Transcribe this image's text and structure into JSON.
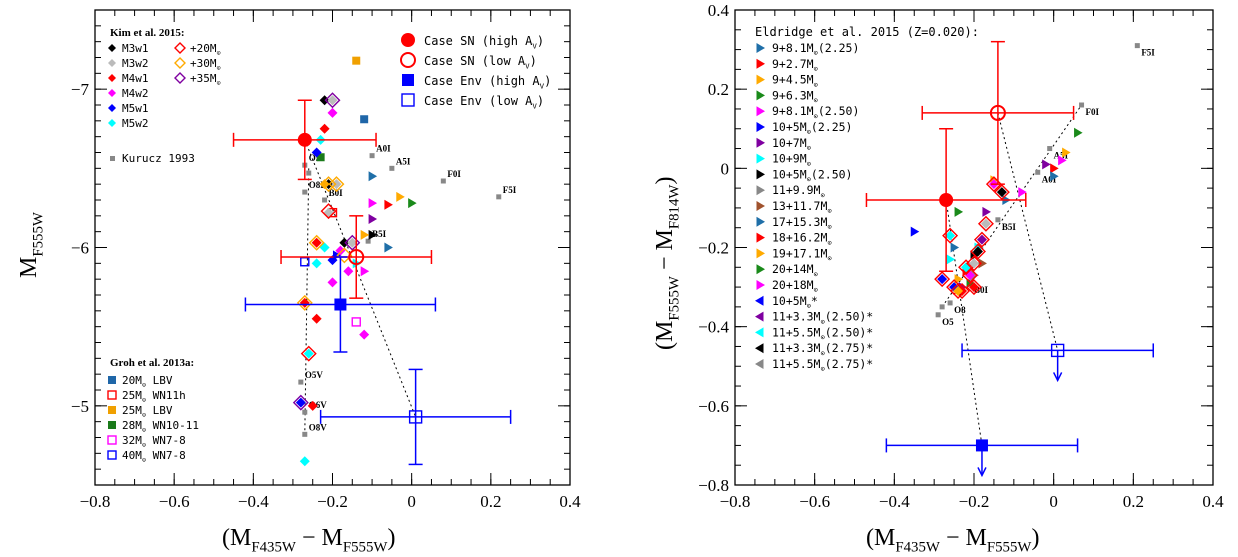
{
  "chart_data": [
    {
      "type": "scatter",
      "xlabel": "(M",
      "xlabel_sub1": "F435W",
      "xlabel_mid": " − M",
      "xlabel_sub2": "F555W",
      "xlabel_end": ")",
      "ylabel": "M",
      "ylabel_sub": "F555W",
      "xlim": [
        -0.8,
        0.4
      ],
      "ylim": [
        -4.5,
        -7.5
      ],
      "xticks": [
        "−0.8",
        "−0.6",
        "−0.4",
        "−0.2",
        "0",
        "0.2",
        "0.4"
      ],
      "xtick_values": [
        -0.8,
        -0.6,
        -0.4,
        -0.2,
        0,
        0.2,
        0.4
      ],
      "yticks": [
        "−7",
        "−6",
        "−5"
      ],
      "ytick_values": [
        -7,
        -6,
        -5
      ],
      "legend_kim_title": "Kim et al. 2015:",
      "legend_kim": [
        {
          "label": "M3w1",
          "color": "#000000",
          "marker": "diamond"
        },
        {
          "label": "M3w2",
          "color": "#bbbbbb",
          "marker": "diamond"
        },
        {
          "label": "M4w1",
          "color": "#ff0000",
          "marker": "diamond"
        },
        {
          "label": "M4w2",
          "color": "#ff00ff",
          "marker": "diamond"
        },
        {
          "label": "M5w1",
          "color": "#0000ff",
          "marker": "diamond"
        },
        {
          "label": "M5w2",
          "color": "#00ffff",
          "marker": "diamond"
        },
        {
          "label": "+20M",
          "color": "#ff0000",
          "marker": "open-diamond"
        },
        {
          "label": "+30M",
          "color": "#ffaa00",
          "marker": "open-diamond"
        },
        {
          "label": "+35M",
          "color": "#7f00a0",
          "marker": "open-diamond"
        }
      ],
      "solar_symbol": "⊙",
      "legend_kurucz": "Kurucz 1993",
      "legend_case": [
        {
          "label": "Case SN (high A",
          "sub": "V",
          "end": ")",
          "color": "#ff0000",
          "marker": "filled-circle"
        },
        {
          "label": "Case SN (low A",
          "sub": "V",
          "end": ")",
          "color": "#ff0000",
          "marker": "open-circle"
        },
        {
          "label": "Case Env (high A",
          "sub": "V",
          "end": ")",
          "color": "#0000ff",
          "marker": "filled-square"
        },
        {
          "label": "Case Env (low A",
          "sub": "V",
          "end": ")",
          "color": "#0000ff",
          "marker": "open-square"
        }
      ],
      "legend_groh_title": "Groh et al. 2013a:",
      "legend_groh": [
        {
          "label": "20M",
          "suffix": " LBV",
          "color": "#1f66a8",
          "marker": "filled-square"
        },
        {
          "label": "25M",
          "suffix": " WN11h",
          "color": "#ff0000",
          "marker": "open-square"
        },
        {
          "label": "25M",
          "suffix": " LBV",
          "color": "#f0a000",
          "marker": "filled-square"
        },
        {
          "label": "28M",
          "suffix": " WN10-11",
          "color": "#1a7a1a",
          "marker": "filled-square"
        },
        {
          "label": "32M",
          "suffix": " WN7-8",
          "color": "#ff00ff",
          "marker": "open-square"
        },
        {
          "label": "40M",
          "suffix": " WN7-8",
          "color": "#0000ff",
          "marker": "open-square"
        }
      ],
      "kurucz_points": [
        {
          "x": -0.27,
          "y": -6.52,
          "label": "O5I"
        },
        {
          "x": -0.26,
          "y": -6.47,
          "label": ""
        },
        {
          "x": -0.27,
          "y": -6.35,
          "label": "O8I"
        },
        {
          "x": -0.22,
          "y": -6.3,
          "label": "B0I"
        },
        {
          "x": -0.11,
          "y": -6.04,
          "label": "B5I"
        },
        {
          "x": -0.1,
          "y": -6.58,
          "label": "A0I"
        },
        {
          "x": -0.05,
          "y": -6.5,
          "label": "A5I"
        },
        {
          "x": 0.08,
          "y": -6.42,
          "label": "F0I"
        },
        {
          "x": 0.22,
          "y": -6.32,
          "label": "F5I"
        },
        {
          "x": -0.28,
          "y": -5.15,
          "label": "O5V"
        },
        {
          "x": -0.27,
          "y": -4.96,
          "label": "O6V"
        },
        {
          "x": -0.27,
          "y": -4.82,
          "label": "O8V"
        }
      ],
      "case_points": [
        {
          "name": "Case SN (high Av)",
          "x": -0.27,
          "y": -6.68,
          "xerr": 0.18,
          "yerr": 0.25,
          "color": "#ff0000",
          "marker": "filled-circle"
        },
        {
          "name": "Case SN (low Av)",
          "x": -0.14,
          "y": -5.94,
          "xerr": 0.19,
          "yerr": 0.26,
          "color": "#ff0000",
          "marker": "open-circle"
        },
        {
          "name": "Case Env (high Av)",
          "x": -0.18,
          "y": -5.64,
          "xerr": 0.24,
          "yerr": 0.3,
          "color": "#0000ff",
          "marker": "filled-square"
        },
        {
          "name": "Case Env (low Av)",
          "x": 0.01,
          "y": -4.93,
          "xerr": 0.24,
          "yerr": 0.3,
          "color": "#0000ff",
          "marker": "open-square"
        }
      ],
      "groh_points": [
        {
          "x": -0.12,
          "y": -6.81,
          "color": "#1f66a8",
          "marker": "filled-square"
        },
        {
          "x": -0.14,
          "y": -7.18,
          "color": "#f0a000",
          "marker": "filled-square"
        },
        {
          "x": -0.23,
          "y": -6.57,
          "color": "#1a7a1a",
          "marker": "filled-square"
        },
        {
          "x": -0.2,
          "y": -6.22,
          "color": "#ff0000",
          "marker": "open-square"
        },
        {
          "x": -0.14,
          "y": -5.53,
          "color": "#ff00ff",
          "marker": "open-square"
        },
        {
          "x": -0.27,
          "y": -5.91,
          "color": "#0000ff",
          "marker": "open-square"
        }
      ],
      "kim_points": [
        {
          "x": -0.22,
          "y": -6.93,
          "color": "#000000"
        },
        {
          "x": -0.2,
          "y": -6.93,
          "color": "#bbbbbb"
        },
        {
          "x": -0.2,
          "y": -6.85,
          "color": "#ff00ff"
        },
        {
          "x": -0.22,
          "y": -6.75,
          "color": "#ff0000"
        },
        {
          "x": -0.23,
          "y": -6.68,
          "color": "#00ffff"
        },
        {
          "x": -0.24,
          "y": -6.6,
          "color": "#0000ff"
        },
        {
          "x": -0.21,
          "y": -6.4,
          "color": "#000000"
        },
        {
          "x": -0.19,
          "y": -6.4,
          "color": "#bbbbbb"
        },
        {
          "x": -0.21,
          "y": -6.22,
          "color": "#bbbbbb"
        },
        {
          "x": -0.24,
          "y": -6.03,
          "color": "#ff0000"
        },
        {
          "x": -0.22,
          "y": -6.0,
          "color": "#00ffff"
        },
        {
          "x": -0.17,
          "y": -6.03,
          "color": "#000000"
        },
        {
          "x": -0.15,
          "y": -6.03,
          "color": "#bbbbbb"
        },
        {
          "x": -0.18,
          "y": -5.98,
          "color": "#ff00ff"
        },
        {
          "x": -0.24,
          "y": -5.9,
          "color": "#00ffff"
        },
        {
          "x": -0.2,
          "y": -5.92,
          "color": "#0000ff"
        },
        {
          "x": -0.16,
          "y": -5.85,
          "color": "#ff00ff"
        },
        {
          "x": -0.27,
          "y": -5.65,
          "color": "#ff0000"
        },
        {
          "x": -0.24,
          "y": -5.55,
          "color": "#ff0000"
        },
        {
          "x": -0.26,
          "y": -5.33,
          "color": "#00ffff"
        },
        {
          "x": -0.12,
          "y": -5.45,
          "color": "#ff00ff"
        },
        {
          "x": -0.28,
          "y": -5.02,
          "color": "#0000ff"
        },
        {
          "x": -0.25,
          "y": -5.0,
          "color": "#ff0000"
        },
        {
          "x": -0.27,
          "y": -4.65,
          "color": "#00ffff"
        },
        {
          "x": -0.22,
          "y": -6.4,
          "color": "#ffaa00"
        },
        {
          "x": -0.2,
          "y": -5.78,
          "color": "#ff00ff"
        }
      ],
      "kim_open_points": [
        {
          "x": -0.2,
          "y": -6.93,
          "color": "#7f00a0"
        },
        {
          "x": -0.21,
          "y": -6.4,
          "color": "#ffaa00"
        },
        {
          "x": -0.19,
          "y": -6.4,
          "color": "#ffaa00"
        },
        {
          "x": -0.21,
          "y": -6.23,
          "color": "#ff0000"
        },
        {
          "x": -0.24,
          "y": -6.03,
          "color": "#ffaa00"
        },
        {
          "x": -0.15,
          "y": -6.03,
          "color": "#7f00a0"
        },
        {
          "x": -0.17,
          "y": -5.95,
          "color": "#ffaa00"
        },
        {
          "x": -0.27,
          "y": -5.65,
          "color": "#ffaa00"
        },
        {
          "x": -0.26,
          "y": -5.33,
          "color": "#ff0000"
        },
        {
          "x": -0.28,
          "y": -5.02,
          "color": "#7f00a0"
        }
      ],
      "eldridge_points": [
        {
          "x": -0.1,
          "y": -6.45,
          "color": "#1f6fa8"
        },
        {
          "x": -0.06,
          "y": -6.27,
          "color": "#ff0000"
        },
        {
          "x": -0.03,
          "y": -6.32,
          "color": "#ffaa00"
        },
        {
          "x": 0.0,
          "y": -6.28,
          "color": "#1a8a1a"
        },
        {
          "x": -0.1,
          "y": -6.18,
          "color": "#7f00a0"
        },
        {
          "x": -0.1,
          "y": -6.08,
          "color": "#000000"
        },
        {
          "x": -0.12,
          "y": -6.08,
          "color": "#ffaa00"
        },
        {
          "x": -0.06,
          "y": -6.0,
          "color": "#1f6fa8"
        },
        {
          "x": -0.19,
          "y": -5.95,
          "color": "#0000ff"
        },
        {
          "x": -0.14,
          "y": -5.9,
          "color": "#00ffff"
        },
        {
          "x": -0.12,
          "y": -5.85,
          "color": "#ff00ff"
        },
        {
          "x": -0.1,
          "y": -6.28,
          "color": "#ff00ff"
        }
      ],
      "trend_line": {
        "from": [
          -0.27,
          -6.68
        ],
        "to": [
          0.01,
          -4.93
        ]
      }
    },
    {
      "type": "scatter",
      "xlabel": "(M",
      "xlabel_sub1": "F435W",
      "xlabel_mid": " − M",
      "xlabel_sub2": "F555W",
      "xlabel_end": ")",
      "ylabel": "(M",
      "ylabel_sub1": "F555W",
      "ylabel_mid": " − M",
      "ylabel_sub2": "F814W",
      "ylabel_end": ")",
      "xlim": [
        -0.8,
        0.4
      ],
      "ylim": [
        -0.8,
        0.4
      ],
      "xticks": [
        "−0.8",
        "−0.6",
        "−0.4",
        "−0.2",
        "0",
        "0.2",
        "0.4"
      ],
      "xtick_values": [
        -0.8,
        -0.6,
        -0.4,
        -0.2,
        0,
        0.2,
        0.4
      ],
      "yticks": [
        "−0.8",
        "−0.6",
        "−0.4",
        "−0.2",
        "0",
        "0.2",
        "0.4"
      ],
      "ytick_values": [
        -0.8,
        -0.6,
        -0.4,
        -0.2,
        0,
        0.2,
        0.4
      ],
      "legend_title": "Eldridge et al. 2015 (Z=0.020):",
      "legend": [
        {
          "label": "9+8.1M",
          "suffix": "(2.25)",
          "color": "#1f6fa8"
        },
        {
          "label": "9+2.7M",
          "suffix": "",
          "color": "#ff0000"
        },
        {
          "label": "9+4.5M",
          "suffix": "",
          "color": "#ffaa00"
        },
        {
          "label": "9+6.3M",
          "suffix": "",
          "color": "#1a8a1a"
        },
        {
          "label": "9+8.1M",
          "suffix": "(2.50)",
          "color": "#ff00ff"
        },
        {
          "label": "10+5M",
          "suffix": "(2.25)",
          "color": "#0000ff"
        },
        {
          "label": "10+7M",
          "suffix": "",
          "color": "#7f00a0"
        },
        {
          "label": "10+9M",
          "suffix": "",
          "color": "#00ffff"
        },
        {
          "label": "10+5M",
          "suffix": "(2.50)",
          "color": "#000000"
        },
        {
          "label": "11+9.9M",
          "suffix": "",
          "color": "#888888"
        },
        {
          "label": "13+11.7M",
          "suffix": "",
          "color": "#a0522d"
        },
        {
          "label": "17+15.3M",
          "suffix": "",
          "color": "#1f6fa8"
        },
        {
          "label": "18+16.2M",
          "suffix": "",
          "color": "#ff0000"
        },
        {
          "label": "19+17.1M",
          "suffix": "",
          "color": "#ffaa00"
        },
        {
          "label": "20+14M",
          "suffix": "",
          "color": "#1a8a1a"
        },
        {
          "label": "20+18M",
          "suffix": "",
          "color": "#ff00ff"
        },
        {
          "label": "10+5M",
          "suffix": "*",
          "color": "#0000ff"
        },
        {
          "label": "11+3.3M",
          "suffix": "(2.50)*",
          "color": "#7f00a0"
        },
        {
          "label": "11+5.5M",
          "suffix": "(2.50)*",
          "color": "#00ffff"
        },
        {
          "label": "11+3.3M",
          "suffix": "(2.75)*",
          "color": "#000000"
        },
        {
          "label": "11+5.5M",
          "suffix": "(2.75)*",
          "color": "#888888"
        }
      ],
      "solar_symbol": "⊙",
      "kurucz_points": [
        {
          "x": -0.29,
          "y": -0.37,
          "label": "O5"
        },
        {
          "x": -0.28,
          "y": -0.35,
          "label": ""
        },
        {
          "x": -0.26,
          "y": -0.34,
          "label": "O8"
        },
        {
          "x": -0.21,
          "y": -0.29,
          "label": "B0I"
        },
        {
          "x": -0.14,
          "y": -0.13,
          "label": "B5I"
        },
        {
          "x": -0.04,
          "y": -0.01,
          "label": "A0I"
        },
        {
          "x": -0.01,
          "y": 0.05,
          "label": "A5I"
        },
        {
          "x": 0.07,
          "y": 0.16,
          "label": "F0I"
        },
        {
          "x": 0.21,
          "y": 0.31,
          "label": "F5I"
        }
      ],
      "case_points": [
        {
          "name": "Case SN (high Av)",
          "x": -0.27,
          "y": -0.08,
          "xerr": 0.2,
          "yerr": 0.18,
          "color": "#ff0000",
          "marker": "filled-circle"
        },
        {
          "name": "Case SN (low Av)",
          "x": -0.14,
          "y": 0.14,
          "xerr": 0.19,
          "yerr": 0.18,
          "color": "#ff0000",
          "marker": "open-circle"
        },
        {
          "name": "Case Env (low Av)",
          "x": 0.01,
          "y": -0.46,
          "xerr": 0.24,
          "yerr": 0.0,
          "color": "#0000ff",
          "marker": "open-square",
          "upper_arrow": true
        },
        {
          "name": "Case Env (high Av)",
          "x": -0.18,
          "y": -0.7,
          "xerr": 0.24,
          "yerr": 0.0,
          "color": "#0000ff",
          "marker": "filled-square",
          "upper_arrow": true
        }
      ],
      "model_points": [
        {
          "x": 0.06,
          "y": 0.09,
          "color": "#1a8a1a"
        },
        {
          "x": 0.03,
          "y": 0.04,
          "color": "#ffaa00"
        },
        {
          "x": 0.02,
          "y": 0.02,
          "color": "#ff00ff"
        },
        {
          "x": 0.0,
          "y": 0.0,
          "color": "#ff0000"
        },
        {
          "x": -0.02,
          "y": 0.01,
          "color": "#7f00a0"
        },
        {
          "x": 0.0,
          "y": -0.02,
          "color": "#1f6fa8"
        },
        {
          "x": -0.08,
          "y": -0.06,
          "color": "#ff00ff"
        },
        {
          "x": -0.12,
          "y": -0.08,
          "color": "#1f6fa8"
        },
        {
          "x": -0.15,
          "y": -0.03,
          "color": "#ffaa00"
        },
        {
          "x": -0.24,
          "y": -0.11,
          "color": "#1a8a1a"
        },
        {
          "x": -0.35,
          "y": -0.16,
          "color": "#0000ff"
        },
        {
          "x": -0.17,
          "y": -0.11,
          "color": "#7f00a0"
        },
        {
          "x": -0.25,
          "y": -0.2,
          "color": "#1f6fa8"
        },
        {
          "x": -0.2,
          "y": -0.22,
          "color": "#000000"
        },
        {
          "x": -0.18,
          "y": -0.24,
          "color": "#a0522d"
        },
        {
          "x": -0.22,
          "y": -0.26,
          "color": "#ff0000"
        },
        {
          "x": -0.24,
          "y": -0.28,
          "color": "#ffaa00"
        },
        {
          "x": -0.21,
          "y": -0.29,
          "color": "#1a8a1a"
        },
        {
          "x": -0.23,
          "y": -0.3,
          "color": "#7f00a0"
        },
        {
          "x": -0.2,
          "y": -0.27,
          "color": "#888888"
        },
        {
          "x": -0.19,
          "y": -0.2,
          "color": "#00ffff"
        },
        {
          "x": -0.26,
          "y": -0.23,
          "color": "#00ffff"
        }
      ],
      "model_diamonds": [
        {
          "x": -0.26,
          "y": -0.17,
          "color": "#00ffff"
        },
        {
          "x": -0.28,
          "y": -0.28,
          "color": "#0000ff"
        },
        {
          "x": -0.25,
          "y": -0.3,
          "color": "#0000ff"
        },
        {
          "x": -0.23,
          "y": -0.31,
          "color": "#ff0000"
        },
        {
          "x": -0.21,
          "y": -0.27,
          "color": "#ff00ff"
        },
        {
          "x": -0.22,
          "y": -0.25,
          "color": "#00ffff"
        },
        {
          "x": -0.2,
          "y": -0.24,
          "color": "#bbbbbb"
        },
        {
          "x": -0.19,
          "y": -0.21,
          "color": "#000000"
        },
        {
          "x": -0.18,
          "y": -0.18,
          "color": "#7f00a0"
        },
        {
          "x": -0.17,
          "y": -0.14,
          "color": "#bbbbbb"
        },
        {
          "x": -0.15,
          "y": -0.04,
          "color": "#ff00ff"
        },
        {
          "x": -0.13,
          "y": -0.06,
          "color": "#000000"
        },
        {
          "x": -0.24,
          "y": -0.31,
          "color": "#ffaa00"
        },
        {
          "x": -0.2,
          "y": -0.3,
          "color": "#ff0000"
        }
      ],
      "trend_line": {
        "from": [
          -0.27,
          -0.08
        ],
        "to": [
          -0.18,
          -0.7
        ]
      },
      "trend_line2": {
        "from": [
          -0.14,
          0.14
        ],
        "to": [
          0.01,
          -0.46
        ]
      }
    }
  ]
}
